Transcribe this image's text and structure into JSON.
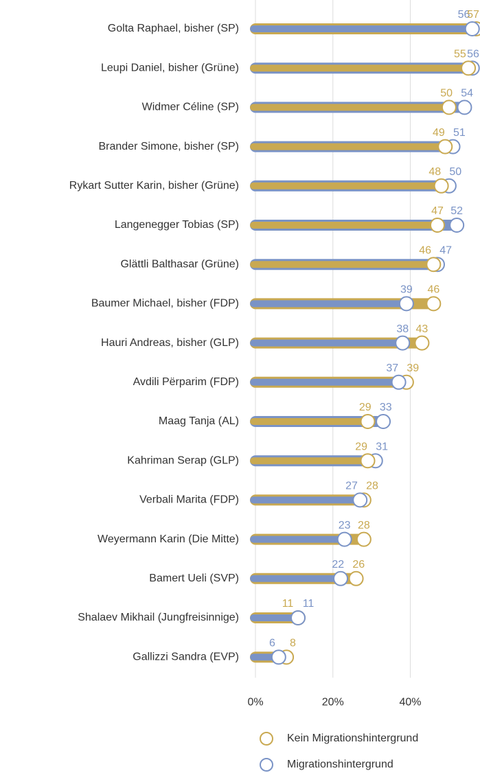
{
  "chart_data": {
    "type": "dumbbell",
    "categories": [
      "Golta Raphael, bisher (SP)",
      "Leupi Daniel, bisher (Grüne)",
      "Widmer Céline (SP)",
      "Brander Simone, bisher (SP)",
      "Rykart Sutter Karin, bisher (Grüne)",
      "Langenegger Tobias (SP)",
      "Glättli Balthasar (Grüne)",
      "Baumer Michael, bisher (FDP)",
      "Hauri Andreas, bisher (GLP)",
      "Avdili Përparim (FDP)",
      "Maag Tanja (AL)",
      "Kahriman Serap (GLP)",
      "Verbali Marita (FDP)",
      "Weyermann Karin (Die Mitte)",
      "Bamert Ueli (SVP)",
      "Shalaev Mikhail (Jungfreisinnige)",
      "Gallizzi Sandra (EVP)"
    ],
    "series": [
      {
        "name": "Kein Migrationshintergrund",
        "color": "#c9a951",
        "values": [
          57,
          55,
          50,
          49,
          48,
          47,
          46,
          46,
          43,
          39,
          29,
          29,
          28,
          28,
          26,
          11,
          8
        ]
      },
      {
        "name": "Migrationshintergrund",
        "color": "#7a93c6",
        "values": [
          56,
          56,
          54,
          51,
          50,
          52,
          47,
          39,
          38,
          37,
          33,
          31,
          27,
          23,
          22,
          11,
          6
        ]
      }
    ],
    "xlim": [
      0,
      58
    ],
    "xticks": [
      {
        "value": 0,
        "label": "0%"
      },
      {
        "value": 20,
        "label": "20%"
      },
      {
        "value": 40,
        "label": "40%"
      }
    ],
    "grid": true
  }
}
